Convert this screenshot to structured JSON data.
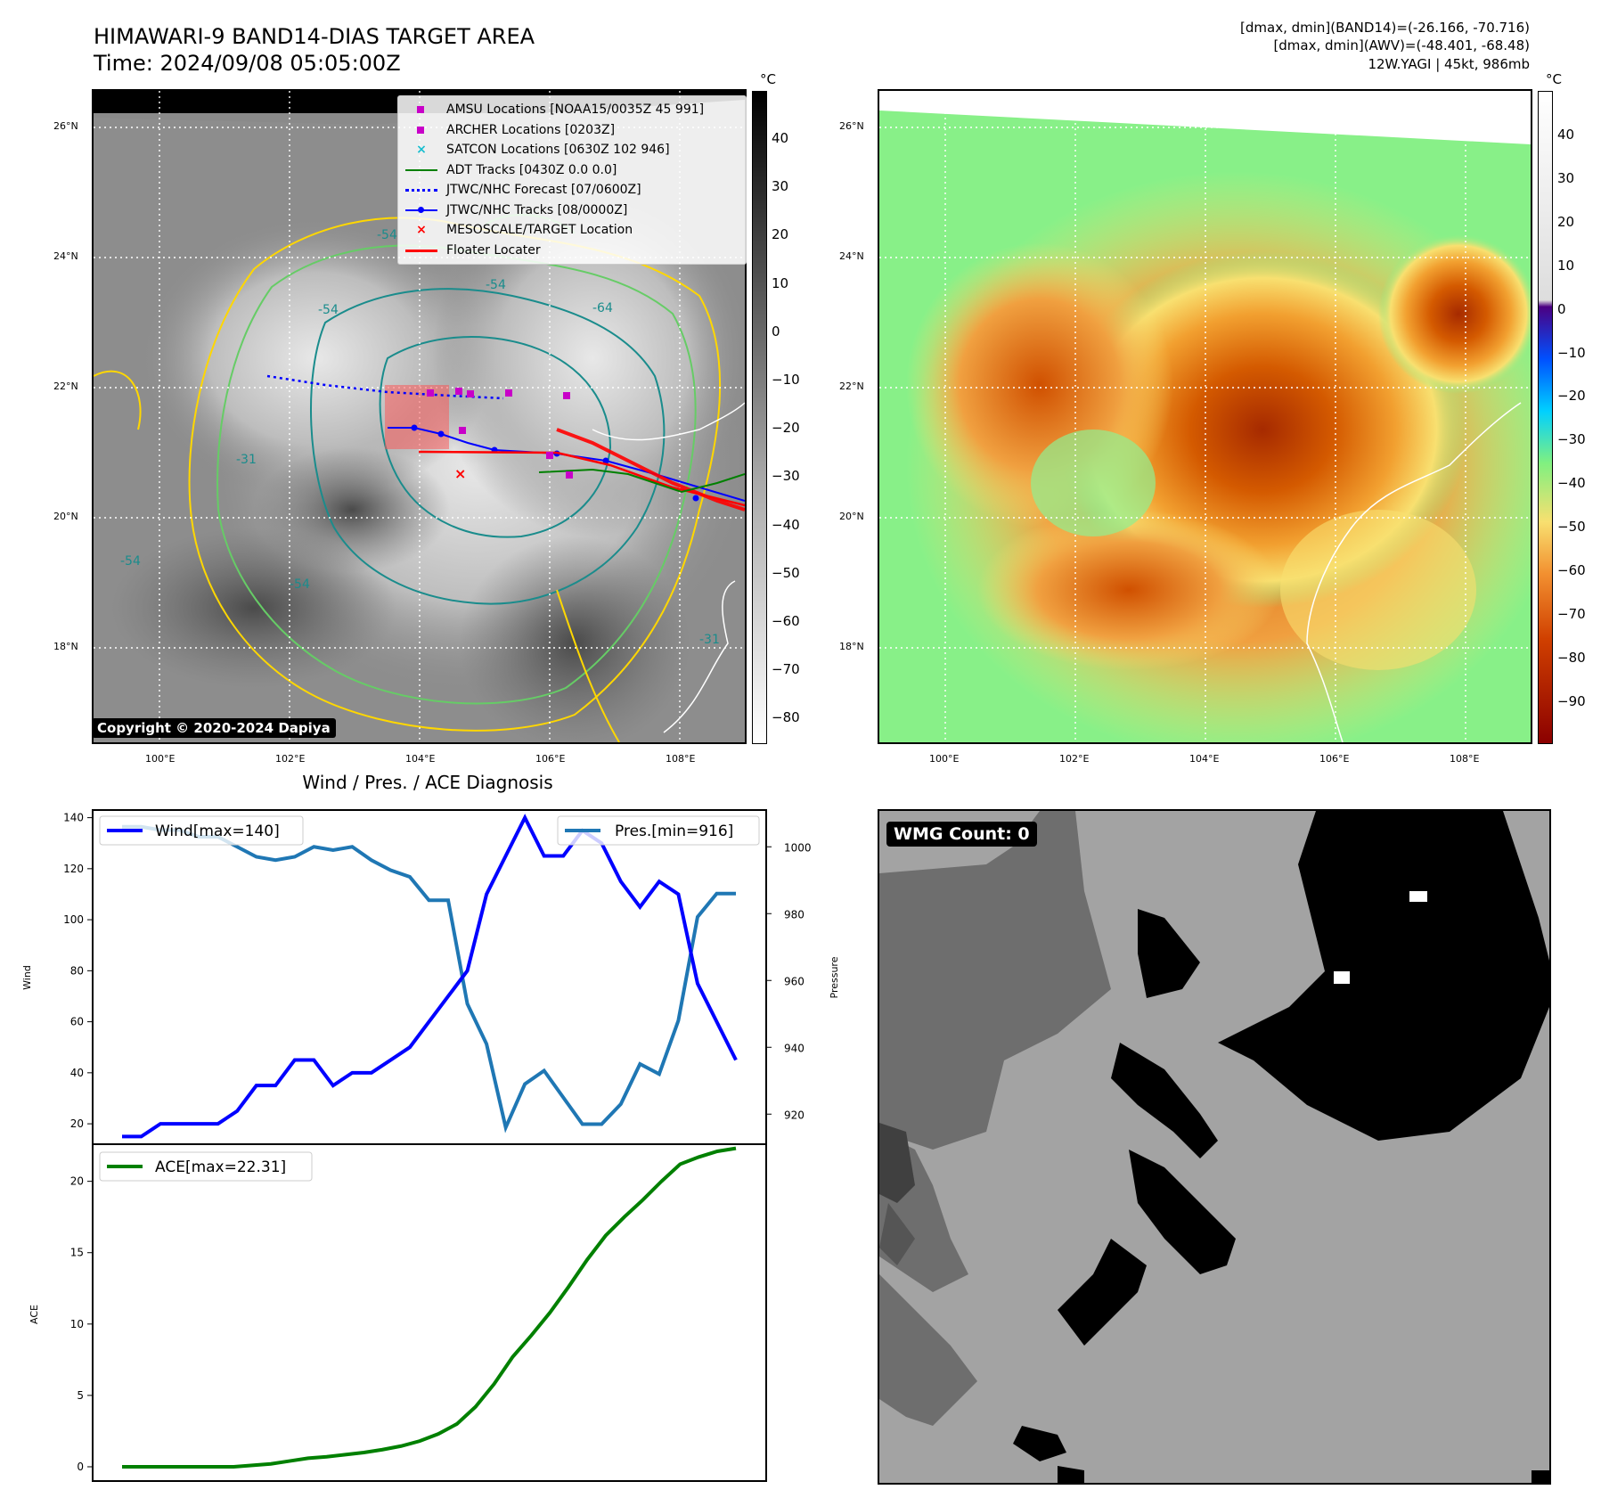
{
  "header": {
    "title_line1": "HIMAWARI-9 BAND14-DIAS TARGET AREA",
    "title_line2": "Time: 2024/09/08 05:05:00Z",
    "info_line1": "[dmax, dmin](BAND14)=(-26.166, -70.716)",
    "info_line2": "[dmax, dmin](AWV)=(-48.401, -68.48)",
    "info_line3": "12W.YAGI | 45kt, 986mb"
  },
  "map": {
    "lat_labels": [
      "26°N",
      "24°N",
      "22°N",
      "20°N",
      "18°N"
    ],
    "lon_labels": [
      "100°E",
      "102°E",
      "104°E",
      "106°E",
      "108°E"
    ],
    "copyright": "Copyright © 2020-2024 Dapiya",
    "contour_labels": [
      "-54",
      "-54",
      "-54",
      "-64",
      "-31",
      "-54",
      "-31",
      "-54"
    ],
    "colorbar_unit": "°C",
    "colorbar_gray_ticks": [
      "40",
      "30",
      "20",
      "10",
      "0",
      "−10",
      "−20",
      "−30",
      "−40",
      "−50",
      "−60",
      "−70",
      "−80"
    ],
    "colorbar_color_ticks": [
      "40",
      "30",
      "20",
      "10",
      "0",
      "−10",
      "−20",
      "−30",
      "−40",
      "−50",
      "−60",
      "−70",
      "−80",
      "−90"
    ],
    "legend": [
      {
        "label": "AMSU Locations [NOAA15/0035Z 45 991]",
        "symbol": "square",
        "color": "#c800c8"
      },
      {
        "label": "ARCHER Locations [0203Z]",
        "symbol": "square",
        "color": "#c800c8"
      },
      {
        "label": "SATCON Locations [0630Z 102 946]",
        "symbol": "x",
        "color": "#17becf"
      },
      {
        "label": "ADT Tracks [0430Z 0.0 0.0]",
        "symbol": "line",
        "color": "#008000"
      },
      {
        "label": "JTWC/NHC Forecast [07/0600Z]",
        "symbol": "dotted",
        "color": "#0000ff"
      },
      {
        "label": "JTWC/NHC Tracks [08/0000Z]",
        "symbol": "line-dot",
        "color": "#0000ff"
      },
      {
        "label": "MESOSCALE/TARGET Location",
        "symbol": "x",
        "color": "#ff0000"
      },
      {
        "label": "Floater Locater",
        "symbol": "line",
        "color": "#ff0000"
      }
    ]
  },
  "wmg": {
    "label": "WMG Count: 0"
  },
  "chart_data": [
    {
      "type": "line",
      "title": "Wind / Pres. / ACE Diagnosis",
      "ylabel": "Wind",
      "ylabel_right": "Pressure",
      "ylim": [
        12,
        143
      ],
      "ylim_right": [
        911,
        1011
      ],
      "yticks": [
        20,
        40,
        60,
        80,
        100,
        120,
        140
      ],
      "yticks_right": [
        920,
        940,
        960,
        980,
        1000
      ],
      "legend_position": "upper left / upper right",
      "series": [
        {
          "name": "Wind[max=140]",
          "axis": "left",
          "color": "#0000ff",
          "values": [
            15,
            15,
            20,
            20,
            20,
            20,
            25,
            35,
            35,
            45,
            45,
            35,
            40,
            40,
            45,
            50,
            60,
            70,
            80,
            110,
            125,
            140,
            125,
            125,
            135,
            130,
            115,
            105,
            115,
            110,
            75,
            60,
            45
          ]
        },
        {
          "name": "Pres.[min=916]",
          "axis": "right",
          "color": "#1f77b4",
          "values": [
            1006,
            1006,
            1005,
            1005,
            1003,
            1003,
            1000,
            997,
            996,
            997,
            1000,
            999,
            1000,
            996,
            993,
            991,
            984,
            984,
            953,
            941,
            916,
            929,
            933,
            925,
            917,
            917,
            923,
            935,
            932,
            948,
            979,
            986,
            986
          ]
        }
      ]
    },
    {
      "type": "line",
      "ylabel": "ACE",
      "ylim": [
        -1,
        22.6
      ],
      "yticks": [
        0,
        5,
        10,
        15,
        20
      ],
      "legend_position": "upper left",
      "series": [
        {
          "name": "ACE[max=22.31]",
          "color": "#008000",
          "values": [
            0,
            0,
            0,
            0,
            0,
            0,
            0,
            0.1,
            0.2,
            0.4,
            0.6,
            0.7,
            0.85,
            1.0,
            1.2,
            1.45,
            1.8,
            2.3,
            3.0,
            4.2,
            5.8,
            7.7,
            9.2,
            10.8,
            12.6,
            14.5,
            16.2,
            17.5,
            18.7,
            20.0,
            21.2,
            21.7,
            22.1,
            22.31
          ]
        }
      ]
    }
  ]
}
